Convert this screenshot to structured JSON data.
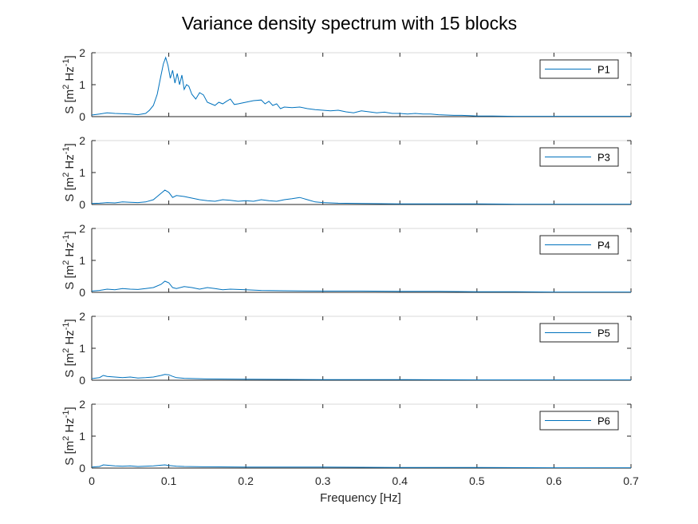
{
  "chart_data": {
    "type": "line",
    "title": "Variance density spectrum with 15 blocks",
    "xlabel": "Frequency [Hz]",
    "ylabel_main": "S [m",
    "ylabel_sup1": "2",
    "ylabel_mid": " Hz",
    "ylabel_sup2": "-1",
    "ylabel_end": "]",
    "xlim": [
      0,
      0.7
    ],
    "ylim": [
      0,
      2
    ],
    "xticks": [
      "0",
      "0.1",
      "0.2",
      "0.3",
      "0.4",
      "0.5",
      "0.6",
      "0.7"
    ],
    "yticks": [
      "0",
      "1",
      "2"
    ],
    "legend_position": "top-right",
    "color": "#0072BD",
    "panels": [
      {
        "name": "P1",
        "x": [
          0,
          0.01,
          0.02,
          0.03,
          0.04,
          0.05,
          0.06,
          0.07,
          0.075,
          0.08,
          0.085,
          0.09,
          0.093,
          0.096,
          0.099,
          0.102,
          0.105,
          0.108,
          0.111,
          0.114,
          0.117,
          0.12,
          0.123,
          0.126,
          0.13,
          0.135,
          0.14,
          0.145,
          0.15,
          0.155,
          0.16,
          0.165,
          0.17,
          0.175,
          0.18,
          0.185,
          0.19,
          0.2,
          0.21,
          0.22,
          0.225,
          0.23,
          0.235,
          0.24,
          0.245,
          0.25,
          0.26,
          0.27,
          0.28,
          0.29,
          0.3,
          0.31,
          0.32,
          0.33,
          0.34,
          0.35,
          0.36,
          0.37,
          0.38,
          0.39,
          0.4,
          0.41,
          0.42,
          0.43,
          0.44,
          0.45,
          0.46,
          0.47,
          0.48,
          0.49,
          0.5,
          0.52,
          0.55,
          0.6,
          0.65,
          0.7
        ],
        "y": [
          0.05,
          0.08,
          0.12,
          0.1,
          0.09,
          0.08,
          0.06,
          0.1,
          0.2,
          0.35,
          0.7,
          1.3,
          1.65,
          1.85,
          1.6,
          1.2,
          1.45,
          1.05,
          1.35,
          1.0,
          1.3,
          0.85,
          1.0,
          0.95,
          0.7,
          0.55,
          0.75,
          0.68,
          0.45,
          0.4,
          0.35,
          0.45,
          0.4,
          0.48,
          0.55,
          0.38,
          0.4,
          0.45,
          0.5,
          0.52,
          0.4,
          0.48,
          0.35,
          0.4,
          0.25,
          0.3,
          0.28,
          0.3,
          0.25,
          0.22,
          0.2,
          0.18,
          0.2,
          0.15,
          0.12,
          0.18,
          0.15,
          0.12,
          0.14,
          0.1,
          0.1,
          0.08,
          0.1,
          0.08,
          0.08,
          0.06,
          0.05,
          0.04,
          0.04,
          0.03,
          0.02,
          0.02,
          0.01,
          0.01,
          0.01,
          0.01
        ]
      },
      {
        "name": "P3",
        "x": [
          0,
          0.01,
          0.02,
          0.03,
          0.04,
          0.05,
          0.06,
          0.07,
          0.08,
          0.085,
          0.09,
          0.095,
          0.1,
          0.105,
          0.11,
          0.12,
          0.13,
          0.14,
          0.15,
          0.16,
          0.17,
          0.18,
          0.19,
          0.2,
          0.21,
          0.22,
          0.23,
          0.24,
          0.25,
          0.26,
          0.27,
          0.28,
          0.29,
          0.3,
          0.32,
          0.35,
          0.4,
          0.45,
          0.5,
          0.55,
          0.6,
          0.65,
          0.7
        ],
        "y": [
          0.03,
          0.04,
          0.06,
          0.05,
          0.08,
          0.07,
          0.06,
          0.08,
          0.15,
          0.25,
          0.35,
          0.45,
          0.38,
          0.22,
          0.28,
          0.25,
          0.2,
          0.15,
          0.12,
          0.1,
          0.15,
          0.13,
          0.1,
          0.12,
          0.1,
          0.15,
          0.12,
          0.1,
          0.15,
          0.18,
          0.22,
          0.15,
          0.08,
          0.06,
          0.04,
          0.03,
          0.02,
          0.02,
          0.02,
          0.01,
          0.01,
          0.01,
          0.01
        ]
      },
      {
        "name": "P4",
        "x": [
          0,
          0.01,
          0.02,
          0.03,
          0.04,
          0.05,
          0.06,
          0.07,
          0.08,
          0.09,
          0.095,
          0.1,
          0.105,
          0.11,
          0.12,
          0.13,
          0.14,
          0.15,
          0.16,
          0.17,
          0.18,
          0.2,
          0.22,
          0.25,
          0.3,
          0.35,
          0.4,
          0.45,
          0.5,
          0.55,
          0.6,
          0.65,
          0.7
        ],
        "y": [
          0.04,
          0.06,
          0.1,
          0.08,
          0.12,
          0.1,
          0.09,
          0.12,
          0.15,
          0.25,
          0.35,
          0.3,
          0.15,
          0.12,
          0.18,
          0.15,
          0.1,
          0.15,
          0.12,
          0.08,
          0.1,
          0.08,
          0.06,
          0.05,
          0.04,
          0.04,
          0.03,
          0.03,
          0.02,
          0.02,
          0.01,
          0.01,
          0.01
        ]
      },
      {
        "name": "P5",
        "x": [
          0,
          0.01,
          0.015,
          0.02,
          0.03,
          0.04,
          0.05,
          0.06,
          0.07,
          0.08,
          0.09,
          0.095,
          0.1,
          0.105,
          0.11,
          0.12,
          0.15,
          0.2,
          0.3,
          0.4,
          0.5,
          0.6,
          0.7
        ],
        "y": [
          0.05,
          0.08,
          0.15,
          0.12,
          0.1,
          0.08,
          0.1,
          0.07,
          0.08,
          0.1,
          0.15,
          0.18,
          0.17,
          0.12,
          0.08,
          0.06,
          0.04,
          0.03,
          0.02,
          0.02,
          0.01,
          0.01,
          0.01
        ]
      },
      {
        "name": "P6",
        "x": [
          0,
          0.01,
          0.015,
          0.02,
          0.03,
          0.04,
          0.05,
          0.06,
          0.07,
          0.08,
          0.09,
          0.095,
          0.1,
          0.11,
          0.12,
          0.15,
          0.2,
          0.3,
          0.4,
          0.5,
          0.6,
          0.7
        ],
        "y": [
          0.03,
          0.05,
          0.1,
          0.09,
          0.07,
          0.06,
          0.07,
          0.05,
          0.06,
          0.07,
          0.09,
          0.1,
          0.08,
          0.06,
          0.05,
          0.04,
          0.03,
          0.03,
          0.02,
          0.02,
          0.01,
          0.01
        ]
      }
    ]
  }
}
